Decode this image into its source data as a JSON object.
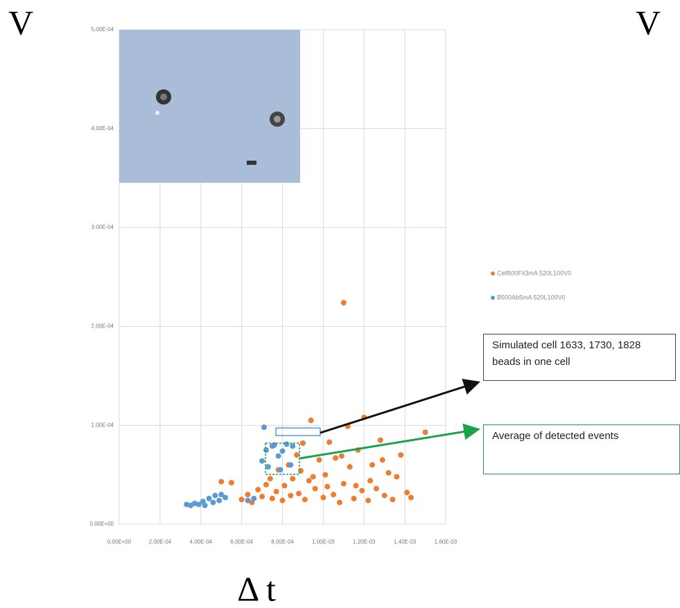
{
  "chart_data": {
    "type": "scatter",
    "axis_labels": [
      "V",
      "V"
    ],
    "x_label": "Δ t",
    "xlim": [
      0,
      0.0016
    ],
    "ylim": [
      0,
      0.0005
    ],
    "xticks": [
      {
        "value": 0,
        "label": "0.00E+00"
      },
      {
        "value": 0.0002,
        "label": "2.00E-04"
      },
      {
        "value": 0.0004,
        "label": "4.00E-04"
      },
      {
        "value": 0.0006,
        "label": "6.00E-04"
      },
      {
        "value": 0.0008,
        "label": "8.00E-04"
      },
      {
        "value": 0.001,
        "label": "1.00E-03"
      },
      {
        "value": 0.0012,
        "label": "1.20E-03"
      },
      {
        "value": 0.0014,
        "label": "1.40E-03"
      },
      {
        "value": 0.0016,
        "label": "1.60E-03"
      }
    ],
    "yticks": [
      {
        "value": 0,
        "label": "0.00E+00"
      },
      {
        "value": 0.0001,
        "label": "1.00E-04"
      },
      {
        "value": 0.0002,
        "label": "2.00E-04"
      },
      {
        "value": 0.0003,
        "label": "3.00E-04"
      },
      {
        "value": 0.0004,
        "label": "4.00E-04"
      },
      {
        "value": 0.0005,
        "label": "5.00E-04"
      }
    ],
    "grid": true,
    "series": [
      {
        "name": "Cell500Fit3mA 520L100V0",
        "color": "#ed7d31",
        "x": [
          0.0011,
          0.0005,
          0.00055,
          0.0006,
          0.00063,
          0.00065,
          0.00068,
          0.0007,
          0.00072,
          0.00075,
          0.00077,
          0.00078,
          0.0008,
          0.00081,
          0.00083,
          0.00084,
          0.00085,
          0.00087,
          0.00088,
          0.0009,
          0.00091,
          0.00093,
          0.00094,
          0.00096,
          0.00098,
          0.001,
          0.00101,
          0.00103,
          0.00105,
          0.00106,
          0.00108,
          0.0011,
          0.00112,
          0.00113,
          0.00115,
          0.00117,
          0.00119,
          0.0012,
          0.00122,
          0.00124,
          0.00126,
          0.00128,
          0.0013,
          0.00132,
          0.00134,
          0.00136,
          0.00138,
          0.00141,
          0.00143,
          0.0015,
          0.00129,
          0.00109,
          0.00095,
          0.00089,
          0.00074,
          0.00116,
          0.00123,
          0.00102
        ],
        "values": [
          0.000224,
          4.3e-05,
          4.2e-05,
          2.5e-05,
          3e-05,
          2.2e-05,
          3.5e-05,
          2.8e-05,
          4e-05,
          2.6e-05,
          3.3e-05,
          5.5e-05,
          2.4e-05,
          3.9e-05,
          6e-05,
          2.9e-05,
          4.6e-05,
          7e-05,
          3.1e-05,
          8.2e-05,
          2.5e-05,
          4.4e-05,
          0.000105,
          3.6e-05,
          6.5e-05,
          2.7e-05,
          5e-05,
          8.3e-05,
          3e-05,
          6.7e-05,
          2.2e-05,
          4.1e-05,
          9.9e-05,
          5.8e-05,
          2.6e-05,
          7.5e-05,
          3.4e-05,
          0.000108,
          2.4e-05,
          6e-05,
          3.6e-05,
          8.5e-05,
          2.9e-05,
          5.2e-05,
          2.5e-05,
          4.8e-05,
          7e-05,
          3.2e-05,
          2.7e-05,
          9.3e-05,
          6.5e-05,
          6.9e-05,
          4.8e-05,
          5.4e-05,
          4.6e-05,
          3.9e-05,
          4.4e-05,
          3.8e-05
        ]
      },
      {
        "name": "B500Ab5mA 520L100V0",
        "color": "#5b9bd5",
        "x": [
          0.00033,
          0.00035,
          0.00037,
          0.00039,
          0.00041,
          0.00042,
          0.00044,
          0.00046,
          0.00047,
          0.00049,
          0.0005,
          0.00052,
          0.00063,
          0.00066,
          0.0007,
          0.00071,
          0.00073,
          0.00075,
          0.00076,
          0.00078,
          0.00079,
          0.0008,
          0.00082,
          0.00084,
          0.00085,
          0.00072
        ],
        "values": [
          2e-05,
          1.9e-05,
          2.1e-05,
          2e-05,
          2.3e-05,
          1.9e-05,
          2.6e-05,
          2.2e-05,
          2.9e-05,
          2.4e-05,
          3e-05,
          2.7e-05,
          2.4e-05,
          2.6e-05,
          6.4e-05,
          9.8e-05,
          5.8e-05,
          7.9e-05,
          8e-05,
          6.9e-05,
          5.5e-05,
          7.4e-05,
          8.1e-05,
          6e-05,
          7.9e-05,
          7.5e-05
        ]
      }
    ],
    "annotations": [
      "Simulated cell 1633, 1730, 1828 beads in one cell",
      "Average of detected events"
    ]
  }
}
